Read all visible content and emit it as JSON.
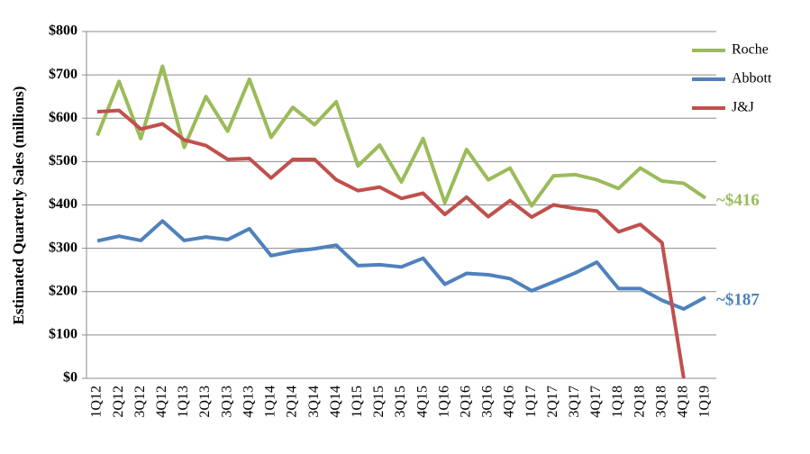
{
  "chart_data": {
    "type": "line",
    "y_label": "Estimated Quarterly Sales (millions)",
    "categories": [
      "1Q12",
      "2Q12",
      "3Q12",
      "4Q12",
      "1Q13",
      "2Q13",
      "3Q13",
      "4Q13",
      "1Q14",
      "2Q14",
      "3Q14",
      "4Q14",
      "1Q15",
      "2Q15",
      "3Q15",
      "4Q15",
      "1Q16",
      "2Q16",
      "3Q16",
      "4Q16",
      "1Q17",
      "2Q17",
      "3Q17",
      "4Q17",
      "1Q18",
      "2Q18",
      "3Q18",
      "4Q18",
      "1Q19"
    ],
    "series": [
      {
        "name": "Roche",
        "color": "#9bbb59",
        "values": [
          560,
          685,
          553,
          720,
          533,
          650,
          570,
          690,
          556,
          625,
          585,
          638,
          490,
          538,
          453,
          553,
          405,
          528,
          458,
          485,
          398,
          467,
          470,
          458,
          438,
          485,
          455,
          450,
          416
        ]
      },
      {
        "name": "Abbott",
        "color": "#4f81bd",
        "values": [
          317,
          328,
          318,
          363,
          318,
          326,
          320,
          345,
          283,
          293,
          299,
          307,
          260,
          262,
          257,
          277,
          217,
          242,
          239,
          230,
          202,
          222,
          243,
          268,
          207,
          207,
          180,
          160,
          187
        ]
      },
      {
        "name": "J&J",
        "color": "#c0504d",
        "values": [
          615,
          618,
          575,
          587,
          550,
          537,
          505,
          507,
          462,
          505,
          505,
          458,
          433,
          441,
          415,
          427,
          378,
          418,
          373,
          410,
          372,
          400,
          392,
          386,
          338,
          355,
          313,
          0,
          null
        ]
      }
    ],
    "annotations": [
      {
        "text": "~$416",
        "color": "#9bbb59"
      },
      {
        "text": "~$187",
        "color": "#4f81bd"
      }
    ],
    "ylim": [
      0,
      800
    ],
    "yticks": [
      {
        "value": 0,
        "label": "$0"
      },
      {
        "value": 100,
        "label": "$100"
      },
      {
        "value": 200,
        "label": "$200"
      },
      {
        "value": 300,
        "label": "$300"
      },
      {
        "value": 400,
        "label": "$400"
      },
      {
        "value": 500,
        "label": "$500"
      },
      {
        "value": 600,
        "label": "$600"
      },
      {
        "value": 700,
        "label": "$700"
      },
      {
        "value": 800,
        "label": "$800"
      }
    ],
    "grid": true,
    "legend": "right"
  }
}
